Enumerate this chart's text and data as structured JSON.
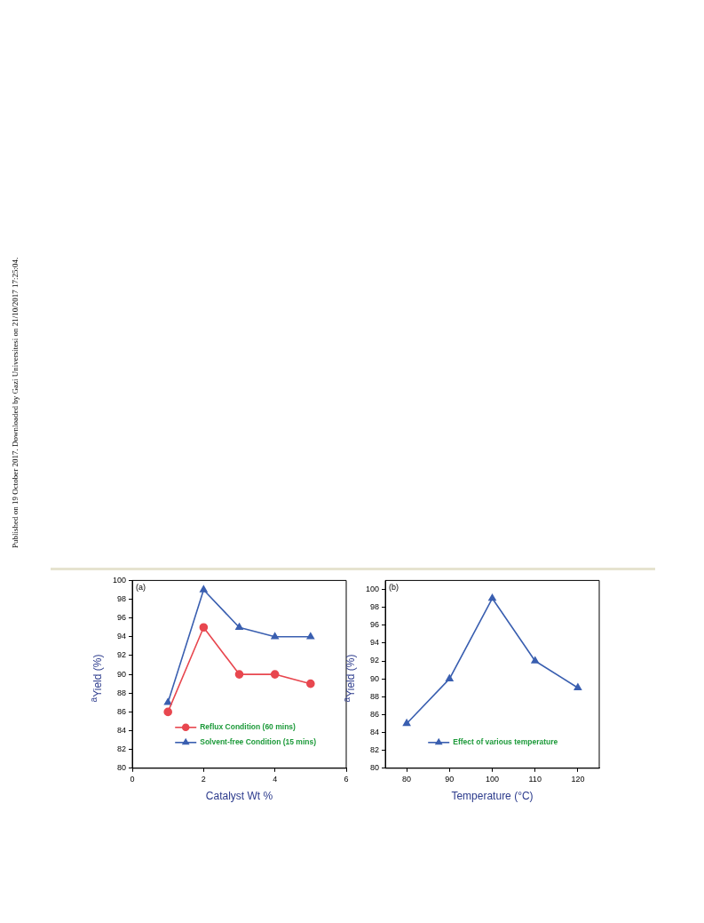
{
  "chart_data": [
    {
      "type": "line",
      "xlabel": "Catalyst Wt %",
      "ylabel": "$^{a}$Yield (%)",
      "x": [
        1,
        2,
        3,
        4,
        5
      ],
      "series": [
        {
          "name": "Reflux Condition (60 mins)",
          "color": "#e8474f",
          "marker": "circle",
          "values": [
            86,
            95,
            90,
            90,
            89
          ]
        },
        {
          "name": "Solvent-free Condition (15 mins)",
          "color": "#3a5fb0",
          "marker": "triangle",
          "values": [
            87,
            99,
            95,
            94,
            94
          ]
        }
      ],
      "xlim": [
        0,
        6
      ],
      "xticks": [
        0,
        2,
        4,
        6
      ],
      "ylim": [
        80,
        100
      ],
      "yticks": [
        80,
        82,
        84,
        86,
        88,
        90,
        92,
        94,
        96,
        98,
        100
      ],
      "grid": false,
      "legend": "bottom",
      "line_style": "solid",
      "annotations": [
        "(a)",
        "Published on 19 October 2017. Downloaded by Gazi Universitesi on 21/10/2017 17:25:04."
      ]
    },
    {
      "type": "line",
      "xlabel": "Temperature (°C)",
      "ylabel": "$^{a}$Yield (%)",
      "x": [
        80,
        90,
        100,
        110,
        120
      ],
      "series": [
        {
          "name": "Effect of various temperature",
          "color": "#3a5fb0",
          "marker": "triangle",
          "values": [
            85,
            90,
            99,
            92,
            89
          ]
        }
      ],
      "xlim": [
        75,
        125
      ],
      "xticks": [
        80,
        90,
        100,
        110,
        120
      ],
      "ylim": [
        80,
        101
      ],
      "yticks": [
        80,
        82,
        84,
        86,
        88,
        90,
        92,
        94,
        96,
        98,
        100
      ],
      "grid": false,
      "legend": "bottom",
      "line_style": "solid",
      "annotations": [
        "(b)"
      ]
    }
  ]
}
